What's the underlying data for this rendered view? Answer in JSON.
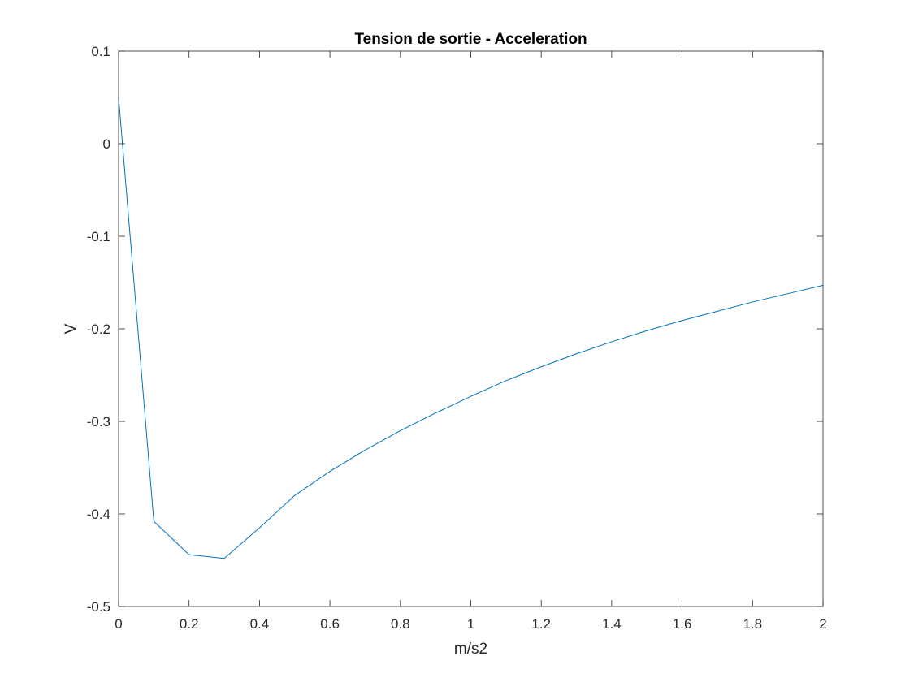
{
  "chart_data": {
    "type": "line",
    "title": "Tension de sortie - Acceleration",
    "xlabel": "m/s2",
    "ylabel": "V",
    "xlim": [
      0,
      2
    ],
    "ylim": [
      -0.5,
      0.1
    ],
    "xticks": [
      0,
      0.2,
      0.4,
      0.6,
      0.8,
      1,
      1.2,
      1.4,
      1.6,
      1.8,
      2
    ],
    "xtick_labels": [
      "0",
      "0.2",
      "0.4",
      "0.6",
      "0.8",
      "1",
      "1.2",
      "1.4",
      "1.6",
      "1.8",
      "2"
    ],
    "yticks": [
      0.1,
      0,
      -0.1,
      -0.2,
      -0.3,
      -0.4,
      -0.5
    ],
    "ytick_labels": [
      "0.1",
      "0",
      "-0.1",
      "-0.2",
      "-0.3",
      "-0.4",
      "-0.5"
    ],
    "grid": false,
    "box": true,
    "line_color": "#0072BD",
    "series": [
      {
        "x": [
          0,
          0.1,
          0.2,
          0.3,
          0.4,
          0.5,
          0.6,
          0.7,
          0.8,
          0.9,
          1.0,
          1.1,
          1.2,
          1.3,
          1.4,
          1.5,
          1.6,
          1.7,
          1.8,
          1.9,
          2.0
        ],
        "values": [
          0.05,
          -0.408,
          -0.444,
          -0.448,
          -0.415,
          -0.38,
          -0.354,
          -0.331,
          -0.31,
          -0.291,
          -0.273,
          -0.256,
          -0.241,
          -0.227,
          -0.214,
          -0.202,
          -0.191,
          -0.181,
          -0.171,
          -0.162,
          -0.153
        ]
      }
    ]
  }
}
